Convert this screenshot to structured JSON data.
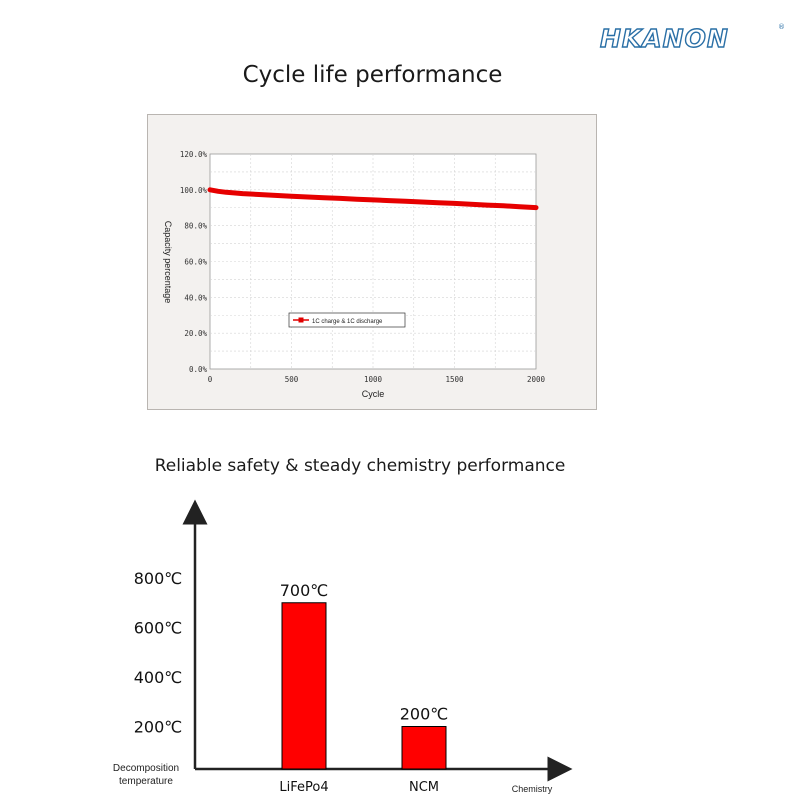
{
  "brand": {
    "name": "HKANON",
    "registered_mark": "®"
  },
  "chart_data": [
    {
      "type": "line",
      "title": "Cycle life performance",
      "xlabel": "Cycle",
      "ylabel": "Capacity percentage",
      "xlim": [
        0,
        2000
      ],
      "ylim": [
        0,
        120
      ],
      "x_ticks": [
        "0",
        "500",
        "1000",
        "1500",
        "2000"
      ],
      "y_ticks": [
        "0.0%",
        "20.0%",
        "40.0%",
        "60.0%",
        "80.0%",
        "100.0%",
        "120.0%"
      ],
      "grid": true,
      "legend": "center-left",
      "series": [
        {
          "name": "1C charge & 1C discharge",
          "color": "#e00000",
          "x": [
            0,
            50,
            100,
            200,
            300,
            400,
            500,
            600,
            700,
            800,
            900,
            1000,
            1100,
            1200,
            1300,
            1400,
            1500,
            1600,
            1700,
            1800,
            1900,
            2000
          ],
          "y": [
            100,
            99.2,
            98.6,
            97.9,
            97.4,
            96.9,
            96.4,
            96.0,
            95.6,
            95.2,
            94.8,
            94.4,
            94.0,
            93.6,
            93.2,
            92.8,
            92.4,
            92.0,
            91.5,
            91.1,
            90.6,
            90.1
          ]
        }
      ]
    },
    {
      "type": "bar",
      "title": "Reliable safety & steady chemistry performance",
      "xlabel": "Chemistry",
      "ylabel": "Decomposition temperature",
      "categories": [
        "LiFePo4",
        "NCM"
      ],
      "values": [
        700,
        200
      ],
      "value_labels": [
        "700℃",
        "200℃"
      ],
      "y_ticks": [
        "200℃",
        "400℃",
        "600℃",
        "800℃"
      ],
      "bar_color": "#ff0000"
    }
  ]
}
